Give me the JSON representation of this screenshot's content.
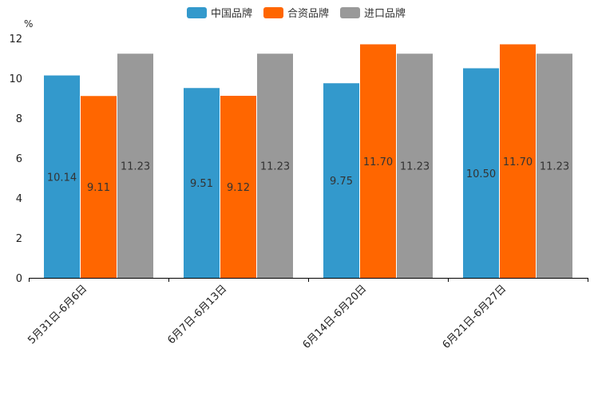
{
  "chart_data": {
    "type": "bar",
    "ylabel": "%",
    "ylim": [
      0,
      12
    ],
    "yticks": [
      0,
      2,
      4,
      6,
      8,
      10,
      12
    ],
    "categories": [
      "5月31日-6月6日",
      "6月7日-6月13日",
      "6月14日-6月20日",
      "6月21日-6月27日"
    ],
    "series": [
      {
        "name": "中国品牌",
        "color": "#3399cc",
        "values": [
          10.14,
          9.51,
          9.75,
          10.5
        ],
        "labels": [
          "10.14",
          "9.51",
          "9.75",
          "10.50"
        ]
      },
      {
        "name": "合资品牌",
        "color": "#ff6600",
        "values": [
          9.11,
          9.12,
          11.7,
          11.7
        ],
        "labels": [
          "9.11",
          "9.12",
          "11.70",
          "11.70"
        ]
      },
      {
        "name": "进口品牌",
        "color": "#999999",
        "values": [
          11.23,
          11.23,
          11.23,
          11.23
        ],
        "labels": [
          "11.23",
          "11.23",
          "11.23",
          "11.23"
        ]
      }
    ],
    "legend": "top-center",
    "grid": false
  }
}
